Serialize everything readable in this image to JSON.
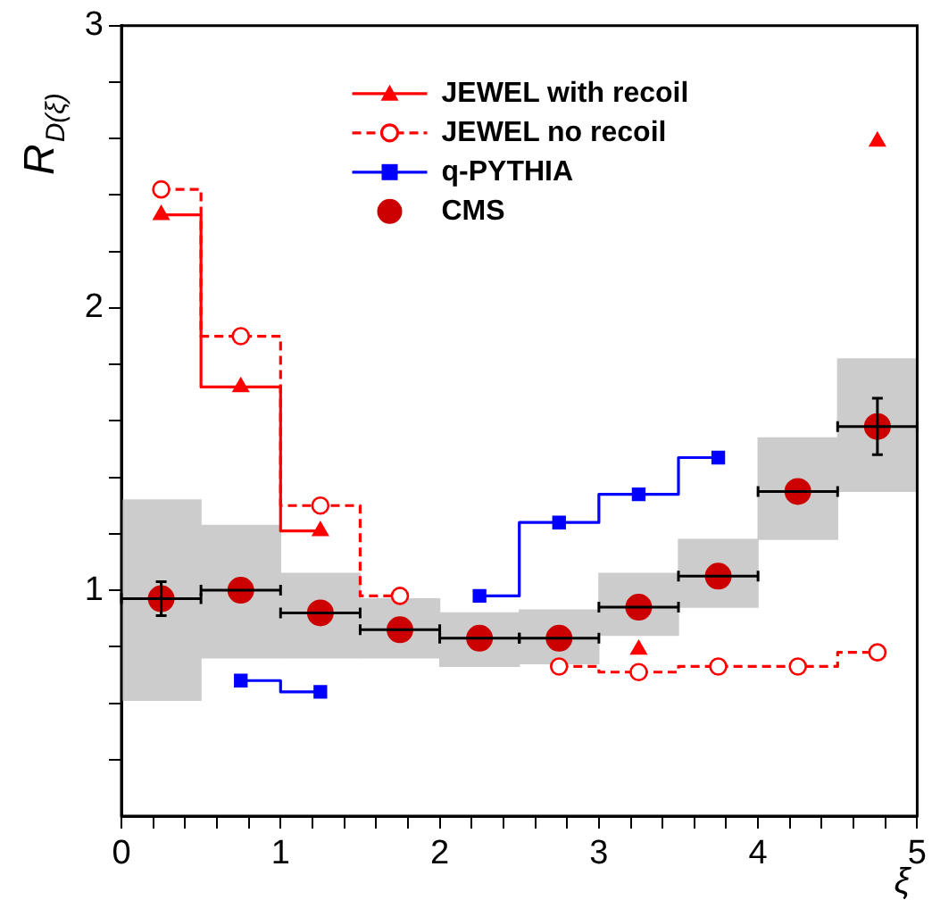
{
  "chart_data": {
    "type": "step",
    "ylabel": "R$_{D(ξ)}$",
    "xlabel": "ξ",
    "xlim": [
      0,
      5
    ],
    "ylim": [
      0.2,
      3
    ],
    "xticks": [
      0,
      {
        "value": 0.2,
        "label": null
      },
      {
        "value": 0.4,
        "label": null
      },
      {
        "value": 0.6,
        "label": null
      },
      {
        "value": 0.8,
        "label": null
      },
      1,
      {
        "value": 1.2,
        "label": null
      },
      {
        "value": 1.4,
        "label": null
      },
      {
        "value": 1.6,
        "label": null
      },
      {
        "value": 1.8,
        "label": null
      },
      2,
      {
        "value": 2.2,
        "label": null
      },
      {
        "value": 2.4,
        "label": null
      },
      {
        "value": 2.6,
        "label": null
      },
      {
        "value": 2.8,
        "label": null
      },
      3,
      {
        "value": 3.2,
        "label": null
      },
      {
        "value": 3.4,
        "label": null
      },
      {
        "value": 3.6,
        "label": null
      },
      {
        "value": 3.8,
        "label": null
      },
      4,
      {
        "value": 4.2,
        "label": null
      },
      {
        "value": 4.4,
        "label": null
      },
      {
        "value": 4.6,
        "label": null
      },
      {
        "value": 4.8,
        "label": null
      },
      5
    ],
    "yticks": [
      {
        "value": 0.4,
        "label": null
      },
      {
        "value": 0.6,
        "label": null
      },
      {
        "value": 0.8,
        "label": null
      },
      1,
      {
        "value": 1.2,
        "label": null
      },
      {
        "value": 1.4,
        "label": null
      },
      {
        "value": 1.6,
        "label": null
      },
      {
        "value": 1.8,
        "label": null
      },
      2,
      {
        "value": 2.2,
        "label": null
      },
      {
        "value": 2.4,
        "label": null
      },
      {
        "value": 2.6,
        "label": null
      },
      {
        "value": 2.8,
        "label": null
      },
      3
    ],
    "legend": "top",
    "grid": false,
    "series": [
      {
        "name": "JEWEL with recoil",
        "color": "#ff0000",
        "marker": "triangle",
        "line_style": "solid",
        "x": [
          0.25,
          0.75,
          1.25,
          1.75,
          2.25,
          2.75,
          3.25,
          3.75,
          4.25,
          4.75
        ],
        "values": [
          2.33,
          1.72,
          1.21,
          null,
          null,
          null,
          0.79,
          null,
          null,
          2.59
        ]
      },
      {
        "name": "JEWEL no recoil",
        "color": "#ff0000",
        "marker": "circle",
        "line_style": "dashed",
        "x": [
          0.25,
          0.75,
          1.25,
          1.75,
          2.25,
          2.75,
          3.25,
          3.75,
          4.25,
          4.75
        ],
        "values": [
          2.42,
          1.9,
          1.3,
          0.98,
          null,
          0.73,
          0.71,
          0.73,
          0.73,
          0.78
        ]
      },
      {
        "name": "q-PYTHIA",
        "color": "#0000ff",
        "marker": "square",
        "line_style": "solid",
        "x": [
          0.75,
          1.25,
          1.75,
          2.25,
          2.75,
          3.25,
          3.75
        ],
        "values": [
          0.68,
          0.64,
          null,
          0.98,
          1.24,
          1.34,
          1.47
        ]
      },
      {
        "type": "bar",
        "color": "#cccccc",
        "x": [
          0.25,
          0.75,
          1.25,
          1.75,
          2.25,
          2.75,
          3.25,
          3.75,
          4.25,
          4.75
        ],
        "base": [
          0.61,
          0.76,
          0.76,
          0.76,
          0.73,
          0.74,
          0.84,
          0.94,
          1.18,
          1.35
        ],
        "values": [
          0.71,
          0.47,
          0.3,
          0.21,
          0.19,
          0.19,
          0.22,
          0.24,
          0.36,
          0.47
        ]
      },
      {
        "name": "CMS",
        "type": "scatter",
        "color": "#cc0000",
        "marker": "circle",
        "x": [
          0.25,
          0.75,
          1.25,
          1.75,
          2.25,
          2.75,
          3.25,
          3.75,
          4.25,
          4.75
        ],
        "values": [
          0.97,
          1.0,
          0.92,
          0.86,
          0.83,
          0.83,
          0.94,
          1.05,
          1.35,
          1.58
        ],
        "xerrors": [
          0.25,
          0.25,
          0.25,
          0.25,
          0.25,
          0.25,
          0.25,
          0.25,
          0.25,
          0.25
        ],
        "errors": [
          0.06,
          null,
          null,
          null,
          null,
          null,
          null,
          null,
          null,
          0.1
        ]
      }
    ]
  }
}
